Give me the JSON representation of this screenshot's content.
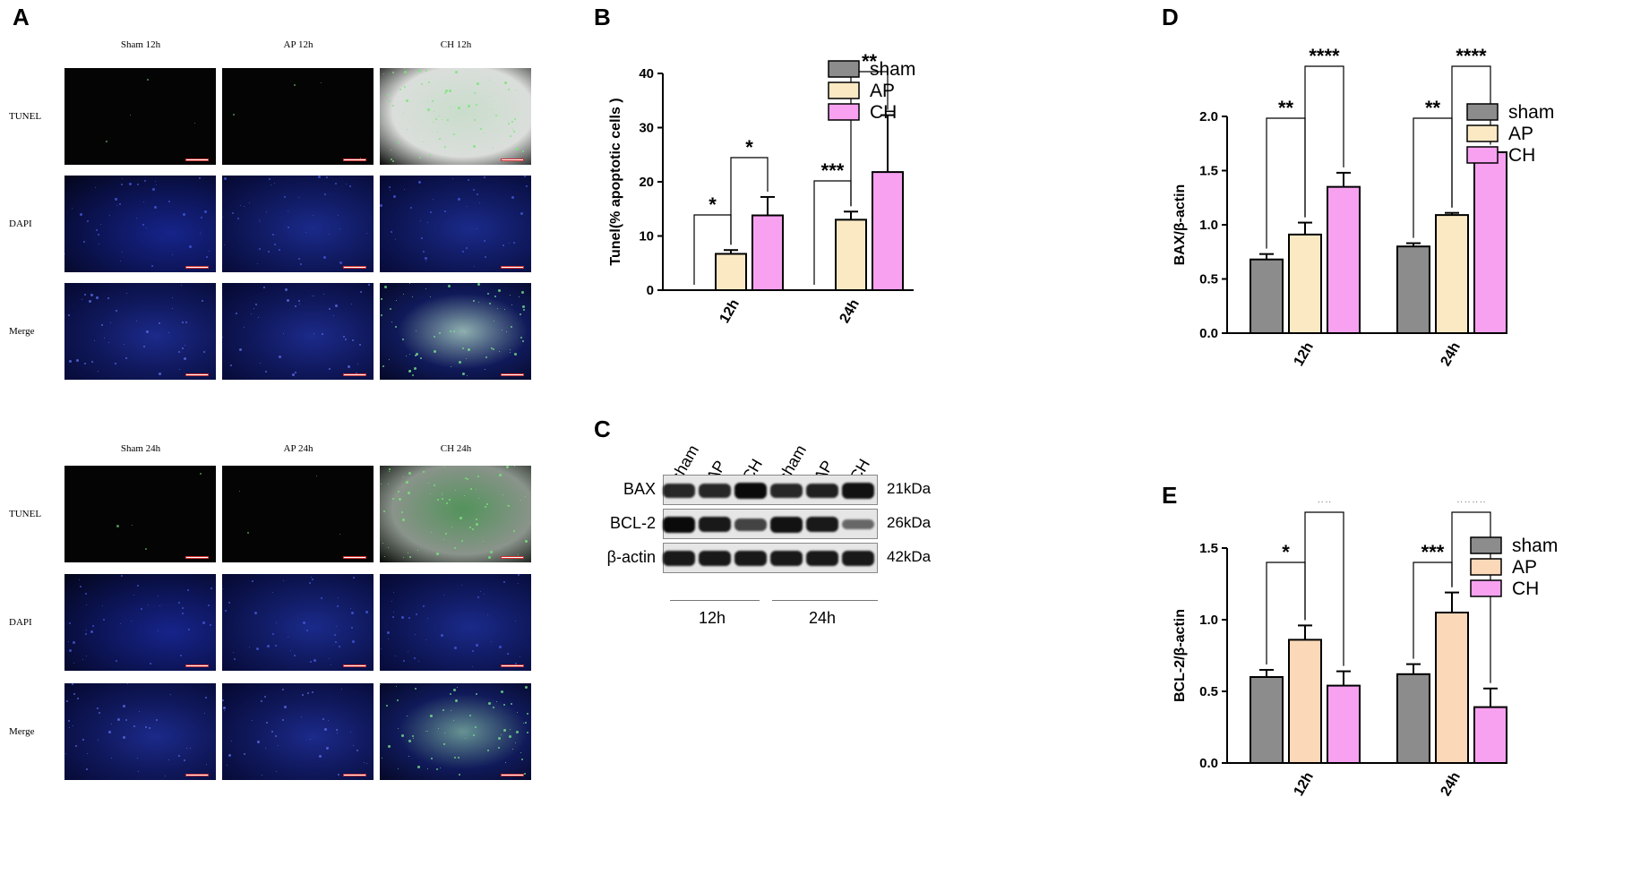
{
  "panels": {
    "a": "A",
    "b": "B",
    "c": "C",
    "d": "D",
    "e": "E"
  },
  "micrographs": {
    "block_12h": {
      "columns": [
        "Sham 12h",
        "AP 12h",
        "CH 12h"
      ],
      "rows": [
        "TUNEL",
        "DAPI",
        "Merge"
      ]
    },
    "block_24h": {
      "columns": [
        "Sham 24h",
        "AP 24h",
        "CH 24h"
      ],
      "rows": [
        "TUNEL",
        "DAPI",
        "Merge"
      ]
    }
  },
  "western_blot": {
    "lanes": [
      "sham",
      "AP",
      "CH",
      "sham",
      "AP",
      "CH"
    ],
    "bands": [
      {
        "name": "BAX",
        "size": "21kDa",
        "intensity": [
          0.8,
          0.8,
          1.0,
          0.8,
          0.85,
          0.95
        ]
      },
      {
        "name": "BCL-2",
        "size": "26kDa",
        "intensity": [
          1.0,
          0.9,
          0.6,
          0.95,
          0.9,
          0.35
        ]
      },
      {
        "name": "β-actin",
        "size": "42kDa",
        "intensity": [
          0.9,
          0.9,
          0.9,
          0.9,
          0.9,
          0.9
        ]
      }
    ],
    "groups": [
      "12h",
      "24h"
    ]
  },
  "colors": {
    "sham": "#8c8c8c",
    "ap_b": "#fbe9c4",
    "ch_b": "#f7a1f0",
    "ap_d": "#fbe9c4",
    "ch_d": "#f7a1f0",
    "ap_e": "#fbd8b8",
    "ch_e": "#f7a1f0"
  },
  "chart_data": [
    {
      "id": "B",
      "type": "bar",
      "title": "",
      "xlabel": "",
      "ylabel": "Tunel(% apoptotic cells )",
      "categories": [
        "12h",
        "24h"
      ],
      "ylim": [
        0,
        40
      ],
      "yticks": [
        0,
        10,
        20,
        30,
        40
      ],
      "legend_position": "top-right",
      "series": [
        {
          "name": "sham",
          "values": [
            0,
            0
          ],
          "errors": [
            0,
            0
          ]
        },
        {
          "name": "AP",
          "values": [
            6.7,
            13.0
          ],
          "errors": [
            0.7,
            1.5
          ]
        },
        {
          "name": "CH",
          "values": [
            13.8,
            21.8
          ],
          "errors": [
            3.4,
            10.5
          ]
        }
      ],
      "significance": [
        {
          "category": "12h",
          "from": "sham",
          "to": "AP",
          "label": "*"
        },
        {
          "category": "12h",
          "from": "AP",
          "to": "CH",
          "label": "*"
        },
        {
          "category": "24h",
          "from": "sham",
          "to": "AP",
          "label": "***"
        },
        {
          "category": "24h",
          "from": "AP",
          "to": "CH",
          "label": "**"
        }
      ]
    },
    {
      "id": "D",
      "type": "bar",
      "title": "",
      "xlabel": "",
      "ylabel": "BAX/β-actin",
      "categories": [
        "12h",
        "24h"
      ],
      "ylim": [
        0,
        2.0
      ],
      "yticks": [
        0.0,
        0.5,
        1.0,
        1.5,
        2.0
      ],
      "legend_position": "top-right",
      "series": [
        {
          "name": "sham",
          "values": [
            0.68,
            0.8
          ],
          "errors": [
            0.05,
            0.03
          ]
        },
        {
          "name": "AP",
          "values": [
            0.91,
            1.09
          ],
          "errors": [
            0.11,
            0.02
          ]
        },
        {
          "name": "CH",
          "values": [
            1.35,
            1.67
          ],
          "errors": [
            0.13,
            0.02
          ]
        }
      ],
      "significance": [
        {
          "category": "12h",
          "from": "sham",
          "to": "AP",
          "label": "**"
        },
        {
          "category": "12h",
          "from": "AP",
          "to": "CH",
          "label": "****"
        },
        {
          "category": "24h",
          "from": "sham",
          "to": "AP",
          "label": "**"
        },
        {
          "category": "24h",
          "from": "AP",
          "to": "CH",
          "label": "****"
        }
      ]
    },
    {
      "id": "E",
      "type": "bar",
      "title": "",
      "xlabel": "",
      "ylabel": "BCL-2/β-actin",
      "categories": [
        "12h",
        "24h"
      ],
      "ylim": [
        0,
        1.5
      ],
      "yticks": [
        0.0,
        0.5,
        1.0,
        1.5
      ],
      "legend_position": "top-right",
      "series": [
        {
          "name": "sham",
          "values": [
            0.6,
            0.62
          ],
          "errors": [
            0.05,
            0.07
          ]
        },
        {
          "name": "AP",
          "values": [
            0.86,
            1.05
          ],
          "errors": [
            0.1,
            0.14
          ]
        },
        {
          "name": "CH",
          "values": [
            0.54,
            0.39
          ],
          "errors": [
            0.1,
            0.13
          ]
        }
      ],
      "significance": [
        {
          "category": "12h",
          "from": "sham",
          "to": "AP",
          "label": "*"
        },
        {
          "category": "12h",
          "from": "AP",
          "to": "CH",
          "label": "**"
        },
        {
          "category": "24h",
          "from": "sham",
          "to": "AP",
          "label": "***"
        },
        {
          "category": "24h",
          "from": "AP",
          "to": "CH",
          "label": "****"
        }
      ]
    }
  ]
}
